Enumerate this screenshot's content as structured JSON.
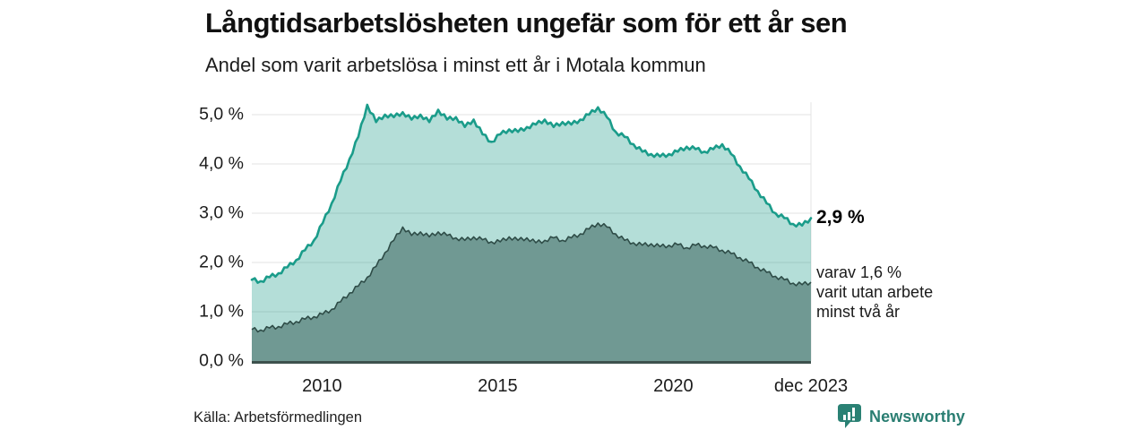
{
  "header": {
    "title": "Långtidsarbetslösheten ungefär som för ett år sen",
    "subtitle": "Andel som varit arbetslösa i minst ett år i Motala kommun"
  },
  "chart_data": {
    "type": "area",
    "title": "Långtidsarbetslösheten ungefär som för ett år sen",
    "subtitle": "Andel som varit arbetslösa i minst ett år i Motala kommun",
    "unit": "%",
    "x_range": [
      2008.0,
      2023.92
    ],
    "x_step_years": 0.25,
    "ylim": [
      0,
      5.5
    ],
    "grid": "horizontal",
    "legend": "none",
    "series": [
      {
        "name": "Andel som varit arbetslösa i minst ett år",
        "values": [
          1.65,
          1.62,
          1.7,
          1.78,
          1.9,
          2.05,
          2.25,
          2.45,
          2.8,
          3.2,
          3.65,
          4.1,
          4.55,
          5.2,
          4.85,
          5.0,
          4.95,
          5.05,
          4.9,
          5.0,
          4.85,
          5.1,
          4.9,
          4.95,
          4.75,
          4.9,
          4.6,
          4.45,
          4.6,
          4.7,
          4.65,
          4.75,
          4.8,
          4.9,
          4.75,
          4.85,
          4.8,
          4.9,
          5.0,
          5.15,
          4.95,
          4.65,
          4.55,
          4.4,
          4.25,
          4.2,
          4.15,
          4.2,
          4.25,
          4.35,
          4.3,
          4.25,
          4.3,
          4.4,
          4.2,
          3.95,
          3.7,
          3.45,
          3.2,
          3.0,
          2.9,
          2.78,
          2.75,
          2.9
        ]
      },
      {
        "name": "Varav utan arbete minst två år",
        "values": [
          0.64,
          0.63,
          0.67,
          0.7,
          0.75,
          0.8,
          0.85,
          0.9,
          0.95,
          1.05,
          1.2,
          1.38,
          1.52,
          1.7,
          1.92,
          2.2,
          2.45,
          2.72,
          2.55,
          2.62,
          2.52,
          2.62,
          2.55,
          2.5,
          2.45,
          2.52,
          2.46,
          2.42,
          2.42,
          2.52,
          2.45,
          2.5,
          2.4,
          2.45,
          2.5,
          2.45,
          2.5,
          2.58,
          2.68,
          2.8,
          2.72,
          2.58,
          2.45,
          2.4,
          2.35,
          2.38,
          2.32,
          2.35,
          2.36,
          2.3,
          2.35,
          2.34,
          2.3,
          2.25,
          2.18,
          2.1,
          2.0,
          1.9,
          1.8,
          1.72,
          1.65,
          1.58,
          1.55,
          1.6
        ]
      }
    ],
    "y_ticks": [
      {
        "value": 0,
        "label": "0,0 %"
      },
      {
        "value": 1,
        "label": "1,0 %"
      },
      {
        "value": 2,
        "label": "2,0 %"
      },
      {
        "value": 3,
        "label": "3,0 %"
      },
      {
        "value": 4,
        "label": "4,0 %"
      },
      {
        "value": 5,
        "label": "5,0 %"
      }
    ],
    "x_ticks": [
      {
        "year": 2010,
        "label": "2010"
      },
      {
        "year": 2015,
        "label": "2015"
      },
      {
        "year": 2020,
        "label": "2020"
      },
      {
        "year": 2023.92,
        "label": "dec 2023"
      }
    ],
    "latest": {
      "total": 2.9,
      "two_years": 1.6
    }
  },
  "annotations": {
    "latest_value_label": "2,9 %",
    "secondary_lines": [
      "varav 1,6 %",
      "varit utan arbete",
      "minst två år"
    ]
  },
  "footer": {
    "source": "Källa: Arbetsförmedlingen",
    "brand_name": "Newsworthy"
  },
  "style": {
    "accent": "#1a9c8a",
    "light_fill_opacity": 0.33,
    "dark_fill": "#709993",
    "dark_line": "#2e4c47",
    "axis_line": "#3d514d",
    "grid": "#e3e3e3",
    "brand_teal": "#2a8174",
    "jitter": 0.04
  }
}
